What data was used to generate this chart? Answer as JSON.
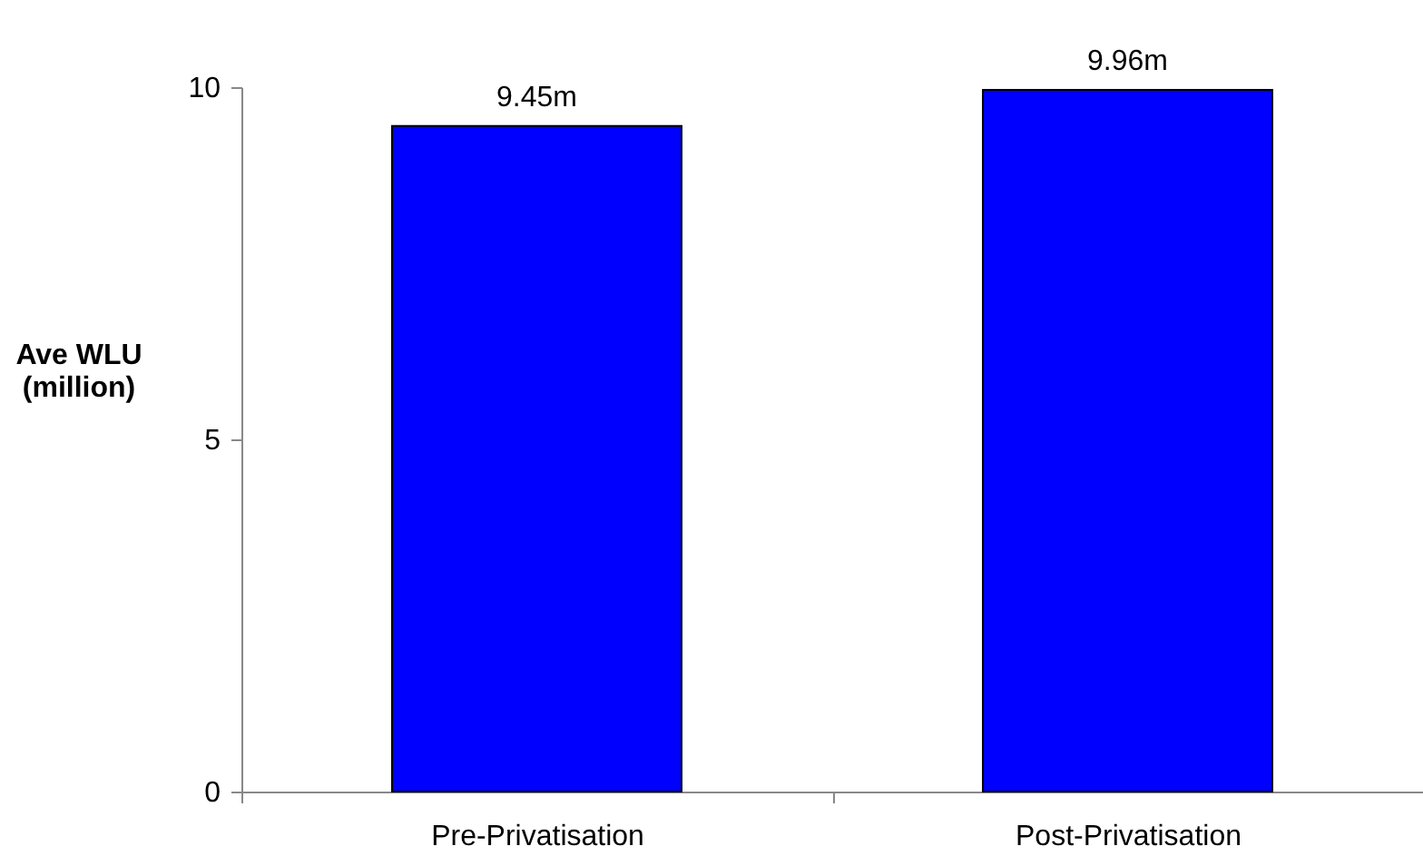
{
  "chart_data": {
    "type": "bar",
    "ylabel": "Ave WLU\n(million)",
    "categories": [
      "Pre-Privatisation",
      "Post-Privatisation"
    ],
    "values": [
      9.45,
      9.96
    ],
    "value_labels": [
      "9.45m",
      "9.96m"
    ],
    "color": "#0000ff",
    "ylim": [
      0,
      10
    ],
    "yticks": [
      0,
      5,
      10
    ],
    "grid": false
  }
}
